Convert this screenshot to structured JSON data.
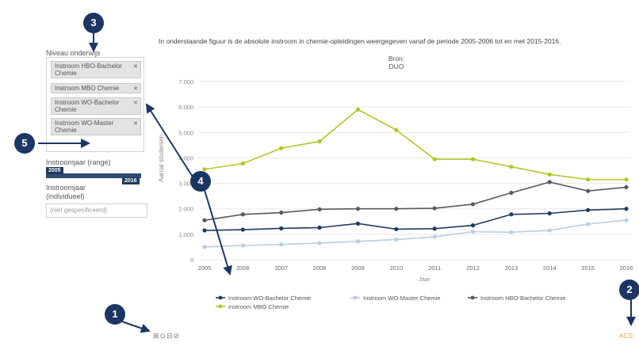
{
  "filters": {
    "level_label": "Niveau onderwijs",
    "level_tags": [
      "Instroom HBO-Bachelor Chemie",
      "Instroom MBO Chemie",
      "Instroom WO-Bachelor Chemie",
      "Instroom WO-Master Chemie"
    ],
    "range_label": "Instroomjaar (range)",
    "range_start": "2005",
    "range_end": "2016",
    "range_selected_fraction": [
      0,
      1
    ],
    "individual_label": "Instroomjaar (individueel)",
    "individual_placeholder": "(niet gespecificeerd)"
  },
  "chart": {
    "title": "In onderstaande figuur is de absolute instroom in chemie-opleidingen weergegeven vanaf de periode 2005-2006 tot en met 2015-2016.",
    "subtitle": "Bron: DUO"
  },
  "chart_data": {
    "type": "line",
    "title": "In onderstaande figuur is de absolute instroom in chemie-opleidingen weergegeven vanaf de periode 2005-2006 tot en met 2015-2016.",
    "subtitle": "Bron: DUO",
    "xlabel": "Jaar",
    "ylabel": "Aantal studenten",
    "x": [
      2005,
      2006,
      2007,
      2008,
      2009,
      2010,
      2011,
      2012,
      2013,
      2014,
      2015,
      2016
    ],
    "y_ticks": [
      "0",
      "1.000",
      "2.000",
      "3.000",
      "4.000",
      "5.000",
      "6.000",
      "7.000"
    ],
    "ylim": [
      0,
      7000
    ],
    "grid": true,
    "legend_position": "bottom",
    "series": [
      {
        "name": "Instroom WO-Bachelor Chemie",
        "color": "#1f3a5f",
        "values": [
          1150,
          1180,
          1230,
          1260,
          1420,
          1200,
          1220,
          1350,
          1780,
          1820,
          1950,
          2000
        ]
      },
      {
        "name": "Instroom WO-Master Chemie",
        "color": "#b9cde0",
        "values": [
          500,
          560,
          600,
          650,
          720,
          790,
          900,
          1100,
          1080,
          1150,
          1400,
          1550
        ]
      },
      {
        "name": "Instroom HBO-Bachelor Chemie",
        "color": "#555a60",
        "values": [
          1550,
          1780,
          1850,
          1980,
          2000,
          2000,
          2020,
          2180,
          2630,
          3050,
          2700,
          2850
        ]
      },
      {
        "name": "Instroom MBO Chemie",
        "color": "#b3c529",
        "values": [
          3550,
          3780,
          4380,
          4650,
          5900,
          5100,
          3950,
          3950,
          3650,
          3350,
          3150,
          3150
        ]
      }
    ]
  },
  "toolbar": {
    "icons": "⊞⊙⊟⊘",
    "lang": "AC☰"
  },
  "annotations": [
    "1",
    "2",
    "3",
    "4",
    "5"
  ]
}
